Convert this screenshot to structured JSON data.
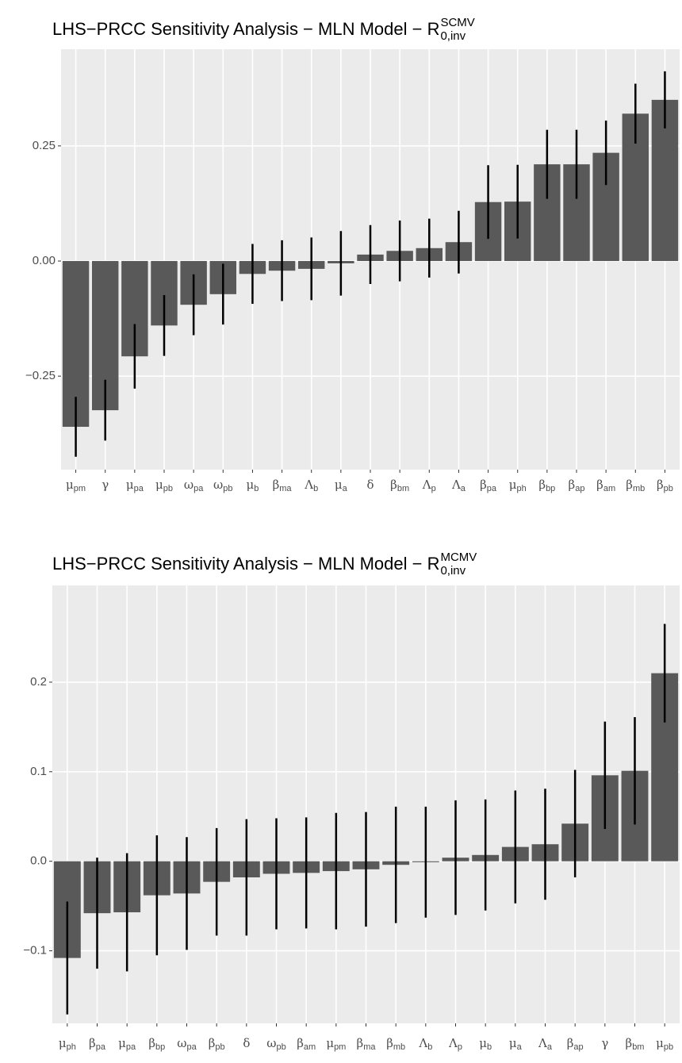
{
  "chart_data": [
    {
      "type": "bar",
      "title": {
        "text": "LHS−PRCC Sensitivity Analysis − MLN Model − R",
        "sup": "SCMV",
        "sub": "0,inv"
      },
      "categories": [
        [
          "μ",
          "pm"
        ],
        [
          "γ"
        ],
        [
          "μ",
          "pa"
        ],
        [
          "μ",
          "pb"
        ],
        [
          "ω",
          "pa"
        ],
        [
          "ω",
          "pb"
        ],
        [
          "μ",
          "b"
        ],
        [
          "β",
          "ma"
        ],
        [
          "Λ",
          "b"
        ],
        [
          "μ",
          "a"
        ],
        [
          "δ"
        ],
        [
          "β",
          "bm"
        ],
        [
          "Λ",
          "p"
        ],
        [
          "Λ",
          "a"
        ],
        [
          "β",
          "pa"
        ],
        [
          "μ",
          "ph"
        ],
        [
          "β",
          "bp"
        ],
        [
          "β",
          "ap"
        ],
        [
          "β",
          "am"
        ],
        [
          "β",
          "mb"
        ],
        [
          "β",
          "pb"
        ]
      ],
      "values": [
        -0.36,
        -0.324,
        -0.207,
        -0.14,
        -0.095,
        -0.072,
        -0.028,
        -0.021,
        -0.017,
        -0.005,
        0.014,
        0.022,
        0.028,
        0.041,
        0.128,
        0.129,
        0.21,
        0.21,
        0.235,
        0.32,
        0.35
      ],
      "errors": [
        0.065,
        0.066,
        0.07,
        0.066,
        0.066,
        0.066,
        0.065,
        0.066,
        0.068,
        0.07,
        0.064,
        0.066,
        0.064,
        0.068,
        0.08,
        0.08,
        0.075,
        0.075,
        0.07,
        0.065,
        0.062
      ],
      "color": "#595959",
      "ylim": [
        -0.453,
        0.46
      ],
      "yticks": [
        {
          "value": -0.25,
          "label": "−0.25"
        },
        {
          "value": 0,
          "label": "0.00"
        },
        {
          "value": 0.25,
          "label": "0.25"
        }
      ],
      "grid": true
    },
    {
      "type": "bar",
      "title": {
        "text": "LHS−PRCC Sensitivity Analysis − MLN Model − R",
        "sup": "MCMV",
        "sub": "0,inv"
      },
      "categories": [
        [
          "μ",
          "ph"
        ],
        [
          "β",
          "pa"
        ],
        [
          "μ",
          "pa"
        ],
        [
          "β",
          "bp"
        ],
        [
          "ω",
          "pa"
        ],
        [
          "β",
          "pb"
        ],
        [
          "δ"
        ],
        [
          "ω",
          "pb"
        ],
        [
          "β",
          "am"
        ],
        [
          "μ",
          "pm"
        ],
        [
          "β",
          "ma"
        ],
        [
          "β",
          "mb"
        ],
        [
          "Λ",
          "b"
        ],
        [
          "Λ",
          "p"
        ],
        [
          "μ",
          "b"
        ],
        [
          "μ",
          "a"
        ],
        [
          "Λ",
          "a"
        ],
        [
          "β",
          "ap"
        ],
        [
          "γ"
        ],
        [
          "β",
          "bm"
        ],
        [
          "μ",
          "pb"
        ]
      ],
      "values": [
        -0.108,
        -0.058,
        -0.057,
        -0.038,
        -0.036,
        -0.023,
        -0.018,
        -0.014,
        -0.013,
        -0.011,
        -0.009,
        -0.004,
        -0.001,
        0.004,
        0.007,
        0.016,
        0.019,
        0.042,
        0.096,
        0.101,
        0.21
      ],
      "errors": [
        0.063,
        0.062,
        0.066,
        0.067,
        0.063,
        0.06,
        0.065,
        0.062,
        0.062,
        0.065,
        0.064,
        0.065,
        0.062,
        0.064,
        0.062,
        0.063,
        0.062,
        0.06,
        0.06,
        0.06,
        0.055
      ],
      "color": "#595959",
      "ylim": [
        -0.181,
        0.308
      ],
      "yticks": [
        {
          "value": -0.1,
          "label": "−0.1"
        },
        {
          "value": 0,
          "label": "0.0"
        },
        {
          "value": 0.1,
          "label": "0.1"
        },
        {
          "value": 0.2,
          "label": "0.2"
        }
      ],
      "grid": true
    }
  ]
}
